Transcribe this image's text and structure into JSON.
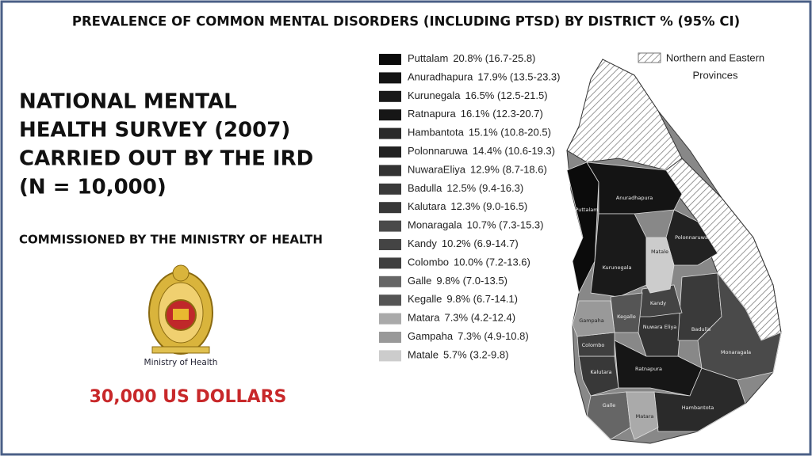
{
  "title": "PREVALENCE OF COMMON MENTAL DISORDERS (INCLUDING PTSD) BY DISTRICT % (95% CI)",
  "left": {
    "heading": [
      "NATIONAL MENTAL",
      "HEALTH SURVEY (2007)",
      "CARRIED OUT BY THE IRD",
      "(N = 10,000)"
    ],
    "commissioned": "COMMISSIONED BY THE MINISTRY OF HEALTH",
    "logo_caption": "Ministry of Health",
    "cost": "30,000 US DOLLARS"
  },
  "legend": [
    {
      "name": "Puttalam",
      "stat": "20.8% (16.7-25.8)",
      "color": "#0b0b0b"
    },
    {
      "name": "Anuradhapura",
      "stat": "17.9% (13.5-23.3)",
      "color": "#141414"
    },
    {
      "name": "Kurunegala",
      "stat": "16.5% (12.5-21.5)",
      "color": "#1a1a1a"
    },
    {
      "name": "Ratnapura",
      "stat": "16.1% (12.3-20.7)",
      "color": "#161616"
    },
    {
      "name": "Hambantota",
      "stat": "15.1% (10.8-20.5)",
      "color": "#2a2a2a"
    },
    {
      "name": "Polonnaruwa",
      "stat": "14.4% (10.6-19.3)",
      "color": "#222222"
    },
    {
      "name": "NuwaraEliya",
      "stat": "12.9% (8.7-18.6)",
      "color": "#333333"
    },
    {
      "name": "Badulla",
      "stat": "12.5% (9.4-16.3)",
      "color": "#3a3a3a"
    },
    {
      "name": "Kalutara",
      "stat": "12.3% (9.0-16.5)",
      "color": "#383838"
    },
    {
      "name": "Monaragala",
      "stat": "10.7% (7.3-15.3)",
      "color": "#4a4a4a"
    },
    {
      "name": "Kandy",
      "stat": "10.2% (6.9-14.7)",
      "color": "#444444"
    },
    {
      "name": "Colombo",
      "stat": "10.0% (7.2-13.6)",
      "color": "#3f3f3f"
    },
    {
      "name": "Galle",
      "stat": "9.8% (7.0-13.5)",
      "color": "#666666"
    },
    {
      "name": "Kegalle",
      "stat": "9.8% (6.7-14.1)",
      "color": "#555555"
    },
    {
      "name": "Matara",
      "stat": "7.3% (4.2-12.4)",
      "color": "#aaaaaa"
    },
    {
      "name": "Gampaha",
      "stat": "7.3% (4.9-10.8)",
      "color": "#999999"
    },
    {
      "name": "Matale",
      "stat": "5.7% (3.2-9.8)",
      "color": "#cccccc"
    }
  ],
  "map": {
    "hatched_legend": [
      "Northern and Eastern",
      "Provinces"
    ],
    "labels": [
      "Puttalam",
      "Anuradhapura",
      "Kurunegala",
      "Ratnapura",
      "Hambantota",
      "Polonnaruwa",
      "Nuwara Eliya",
      "Badulla",
      "Kalutara",
      "Monaragala",
      "Kandy",
      "Colombo",
      "Galle",
      "Kegalle",
      "Matara",
      "Gampaha",
      "Matale"
    ]
  }
}
